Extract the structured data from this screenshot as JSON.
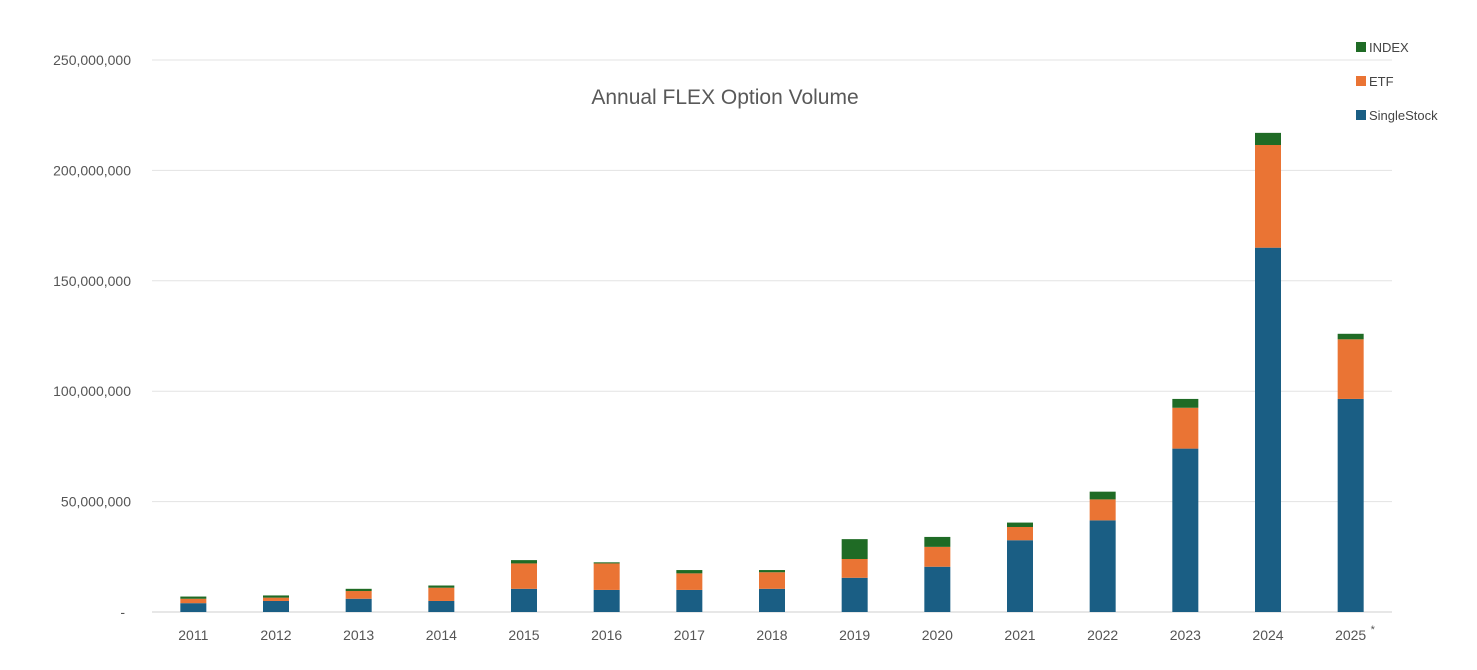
{
  "chart_data": {
    "type": "bar",
    "stacked": true,
    "title": "Annual FLEX Option Volume",
    "xlabel": "",
    "ylabel": "",
    "categories": [
      "2011",
      "2012",
      "2013",
      "2014",
      "2015",
      "2016",
      "2017",
      "2018",
      "2019",
      "2020",
      "2021",
      "2022",
      "2023",
      "2024",
      "2025"
    ],
    "category_markers": {
      "2025": "*"
    },
    "ylim": [
      0,
      250000000
    ],
    "yticks": [
      0,
      50000000,
      100000000,
      150000000,
      200000000,
      250000000
    ],
    "ytick_labels": [
      "-",
      "50,000,000",
      "100,000,000",
      "150,000,000",
      "200,000,000",
      "250,000,000"
    ],
    "grid": true,
    "legend_position": "top-right",
    "series": [
      {
        "name": "SingleStock",
        "color": "#1a5e84",
        "values": [
          4000000,
          5000000,
          6000000,
          5000000,
          10500000,
          10000000,
          10000000,
          10500000,
          15500000,
          20500000,
          32500000,
          41500000,
          74000000,
          165000000,
          96500000
        ]
      },
      {
        "name": "ETF",
        "color": "#ea7434",
        "values": [
          2000000,
          1500000,
          3500000,
          6000000,
          11500000,
          12000000,
          7500000,
          7500000,
          8500000,
          9000000,
          6000000,
          9500000,
          18500000,
          46500000,
          27000000
        ]
      },
      {
        "name": "INDEX",
        "color": "#1f6b25",
        "values": [
          1000000,
          1000000,
          1000000,
          1000000,
          1500000,
          500000,
          1500000,
          1000000,
          9000000,
          4500000,
          2000000,
          3500000,
          4000000,
          5500000,
          2500000
        ]
      }
    ]
  }
}
